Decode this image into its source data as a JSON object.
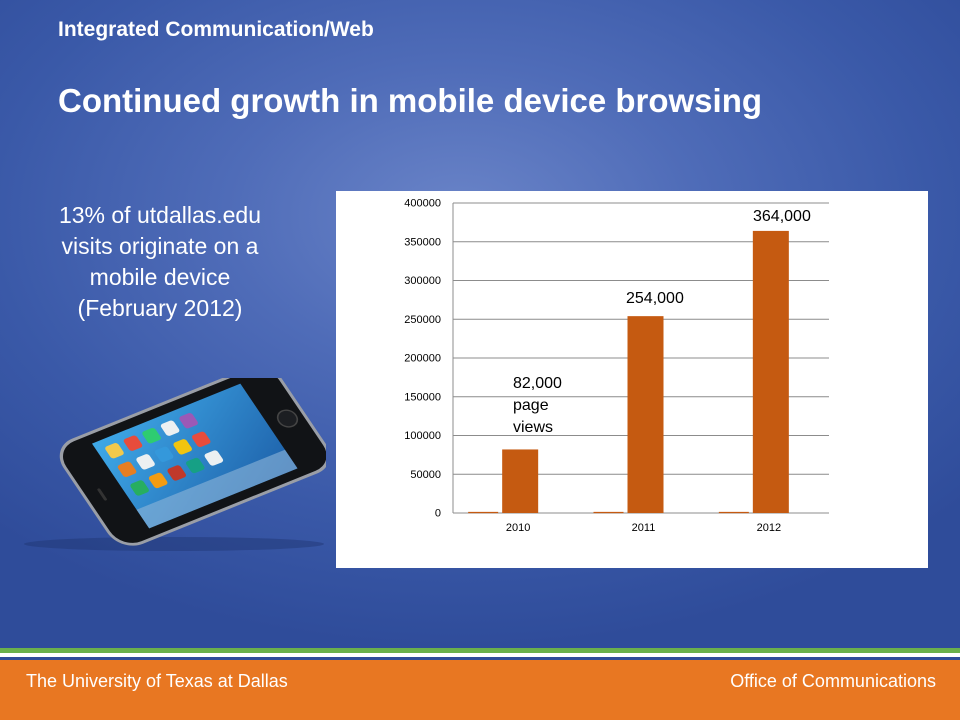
{
  "slide": {
    "kicker": "Integrated Communication/Web",
    "title": "Continued growth in mobile device browsing",
    "note_lines": [
      "13% of utdallas.edu",
      "visits originate on a",
      "mobile device",
      "(February 2012)"
    ]
  },
  "footer": {
    "left": "The University of Texas at Dallas",
    "right": "Office of Communications"
  },
  "colors": {
    "bar": "#c55a11",
    "footer": "#e87722",
    "accent_line": "#6ab04c"
  },
  "chart_data": {
    "type": "bar",
    "categories": [
      "2010",
      "2011",
      "2012"
    ],
    "values": [
      82000,
      254000,
      364000
    ],
    "ylim": [
      0,
      400000
    ],
    "yticks": [
      "0",
      "50000",
      "100000",
      "150000",
      "200000",
      "250000",
      "300000",
      "350000",
      "400000"
    ],
    "grid": true,
    "legend": "none",
    "annotations": [
      {
        "category": "2010",
        "lines": [
          "82,000",
          "page",
          "views"
        ]
      },
      {
        "category": "2011",
        "lines": [
          "254,000"
        ]
      },
      {
        "category": "2012",
        "lines": [
          "364,000"
        ]
      }
    ]
  }
}
